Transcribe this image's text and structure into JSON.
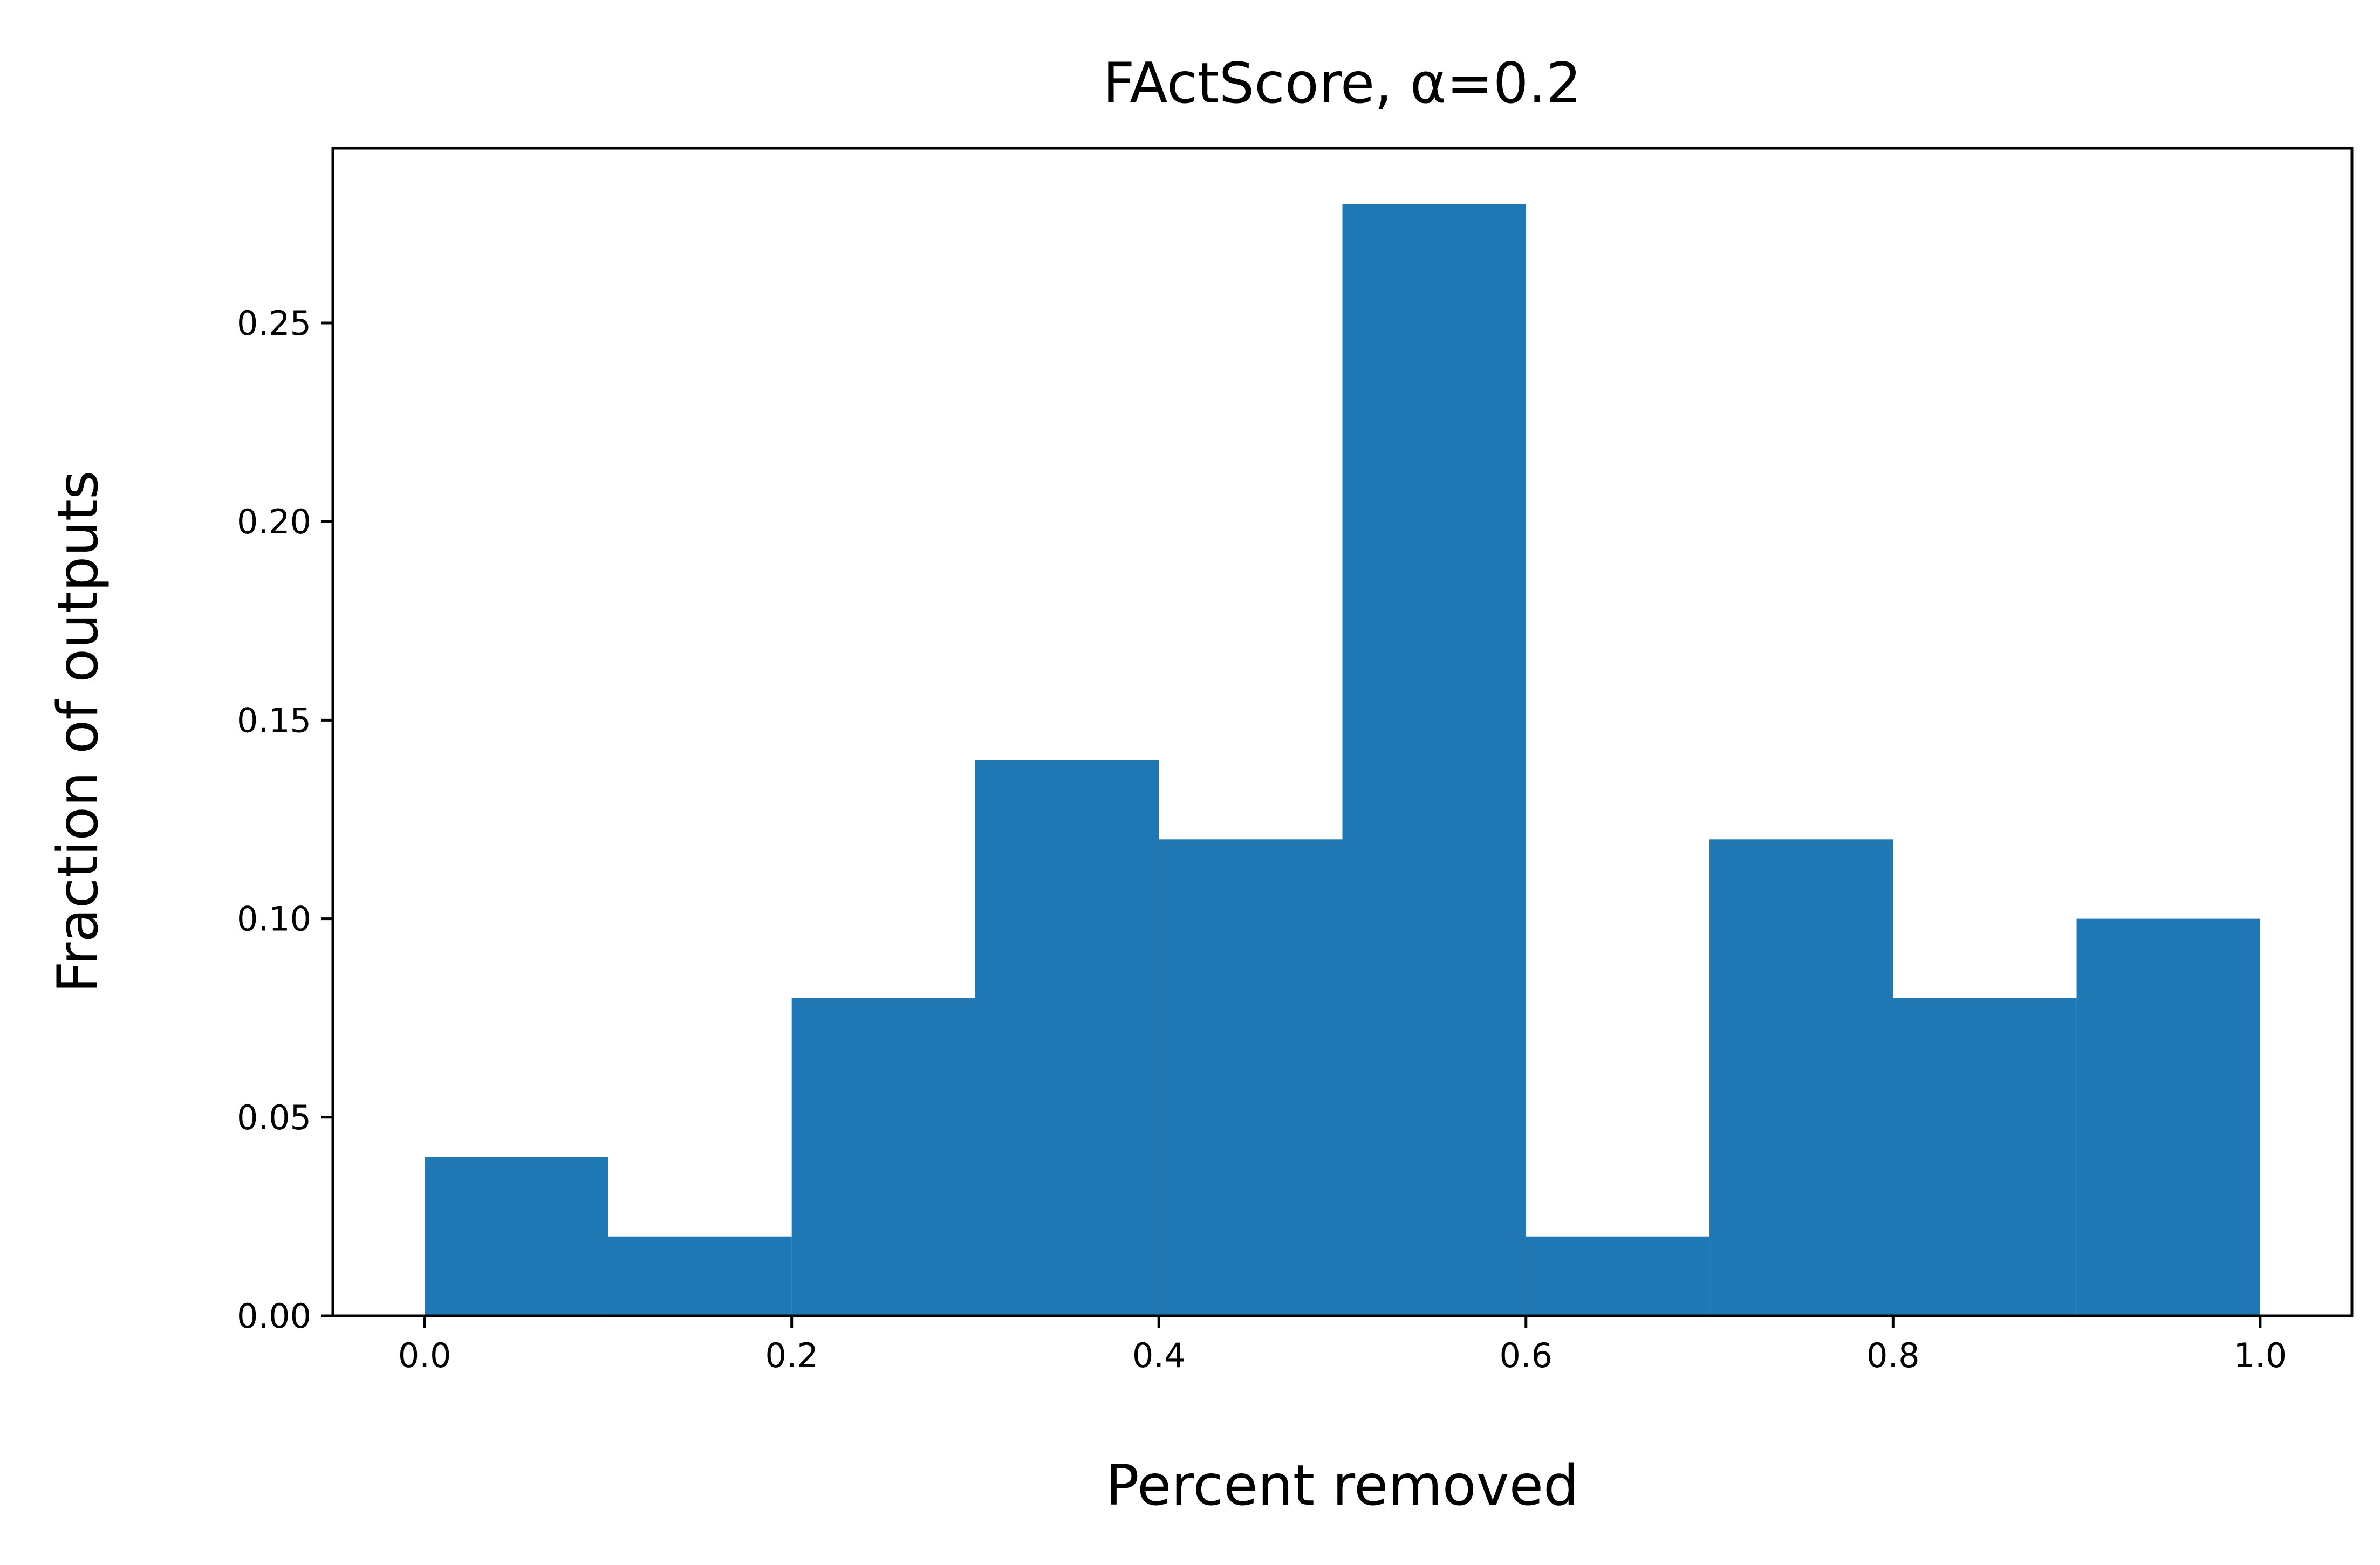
{
  "chart_data": {
    "type": "bar",
    "title": "FActScore, α=0.2",
    "xlabel": "Percent removed",
    "ylabel": "Fraction of outputs",
    "bin_edges": [
      0.0,
      0.1,
      0.2,
      0.3,
      0.4,
      0.5,
      0.6,
      0.7,
      0.8,
      0.9,
      1.0
    ],
    "values": [
      0.04,
      0.02,
      0.08,
      0.14,
      0.12,
      0.28,
      0.02,
      0.12,
      0.08,
      0.1
    ],
    "xlim": [
      -0.05,
      1.05
    ],
    "ylim": [
      0.0,
      0.294
    ],
    "xticks": [
      0.0,
      0.2,
      0.4,
      0.6,
      0.8,
      1.0
    ],
    "xtick_labels": [
      "0.0",
      "0.2",
      "0.4",
      "0.6",
      "0.8",
      "1.0"
    ],
    "yticks": [
      0.0,
      0.05,
      0.1,
      0.15,
      0.2,
      0.25
    ],
    "ytick_labels": [
      "0.00",
      "0.05",
      "0.10",
      "0.15",
      "0.20",
      "0.25"
    ],
    "bar_color": "#1f77b4",
    "grid": false,
    "legend": "none"
  }
}
